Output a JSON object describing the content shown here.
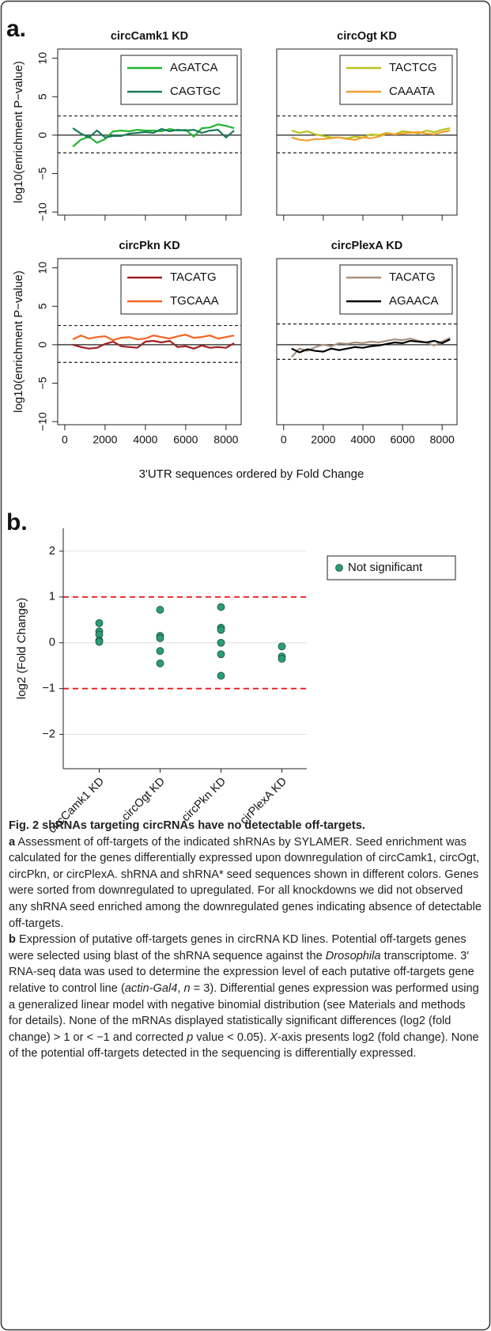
{
  "panel_labels": [
    "a.",
    "b."
  ],
  "shared_xlabel": "3'UTR sequences ordered by Fold Change",
  "chart_data": [
    {
      "type": "line",
      "title": "circCamk1 KD",
      "ylabel": "log10(enrichment P−value)",
      "x": [
        400,
        800,
        1200,
        1600,
        2000,
        2400,
        2800,
        3200,
        3600,
        4000,
        4400,
        4800,
        5200,
        5600,
        6000,
        6400,
        6800,
        7200,
        7600,
        8000,
        8400
      ],
      "series": [
        {
          "name": "AGATCA",
          "color": "#22b530",
          "values": [
            -1.5,
            -0.6,
            -0.2,
            -1,
            -0.5,
            0.5,
            0.6,
            0.5,
            0.7,
            0.6,
            0.6,
            0.5,
            0.8,
            0.6,
            0.7,
            -0.2,
            0.9,
            1.0,
            1.4,
            1.2,
            0.9
          ]
        },
        {
          "name": "CAGTGC",
          "color": "#1a7a5a",
          "values": [
            0.9,
            0.2,
            -0.3,
            0.6,
            -0.3,
            -0.1,
            -0.1,
            0.2,
            0.3,
            0.4,
            0.3,
            0.8,
            0.5,
            0.7,
            0.6,
            0.7,
            0.3,
            0.6,
            0.7,
            -0.3,
            0.6
          ]
        }
      ],
      "xlim": [
        -350,
        8750
      ],
      "ylim": [
        -10.4,
        11.2
      ],
      "xticks": [
        0,
        2000,
        4000,
        6000,
        8000
      ],
      "show_xtick_labels": false,
      "yticks": [
        {
          "value": -10,
          "label": "−10"
        },
        {
          "value": -5,
          "label": "−5"
        },
        0,
        5,
        10
      ],
      "hlines": [
        {
          "value": 0,
          "style": "solid"
        },
        {
          "value": 2.5,
          "style": "dashed"
        },
        {
          "value": -2.3,
          "style": "dashed"
        }
      ]
    },
    {
      "type": "line",
      "title": "circOgt KD",
      "x": [
        400,
        800,
        1200,
        1600,
        2000,
        2400,
        2800,
        3200,
        3600,
        4000,
        4400,
        4800,
        5200,
        5600,
        6000,
        6400,
        6800,
        7200,
        7600,
        8000,
        8400
      ],
      "series": [
        {
          "name": "TACTCG",
          "color": "#b8c21a",
          "values": [
            0.6,
            0.3,
            0.5,
            0.1,
            -0.1,
            -0.3,
            -0.3,
            -0.4,
            -0.2,
            -0.3,
            0.1,
            0.0,
            0.3,
            0.1,
            0.5,
            0.4,
            0.2,
            0.6,
            0.4,
            0.7,
            0.9
          ]
        },
        {
          "name": "CAAATA",
          "color": "#f0a030",
          "values": [
            -0.3,
            -0.6,
            -0.7,
            -0.5,
            -0.5,
            -0.4,
            -0.3,
            -0.5,
            -0.6,
            -0.3,
            -0.4,
            -0.2,
            0.2,
            0.1,
            0.2,
            0.3,
            0.4,
            0.2,
            0.1,
            0.4,
            0.6
          ]
        }
      ],
      "xlim": [
        -350,
        8750
      ],
      "ylim": [
        -10.4,
        11.2
      ],
      "xticks": [
        0,
        2000,
        4000,
        6000,
        8000
      ],
      "show_xtick_labels": false,
      "hlines": [
        {
          "value": 0,
          "style": "solid"
        },
        {
          "value": 2.5,
          "style": "dashed"
        },
        {
          "value": -2.3,
          "style": "dashed"
        }
      ]
    },
    {
      "type": "line",
      "title": "circPkn KD",
      "ylabel": "log10(enrichment P−value)",
      "x": [
        400,
        800,
        1200,
        1600,
        2000,
        2400,
        2800,
        3200,
        3600,
        4000,
        4400,
        4800,
        5200,
        5600,
        6000,
        6400,
        6800,
        7200,
        7600,
        8000,
        8400
      ],
      "series": [
        {
          "name": "TACATG",
          "color": "#a01f1f",
          "values": [
            0,
            -0.3,
            -0.5,
            -0.4,
            0.1,
            0.4,
            -0.2,
            -0.3,
            -0.4,
            0.4,
            0.5,
            0.3,
            0.5,
            -0.3,
            -0.2,
            -0.5,
            -0.1,
            -0.4,
            -0.3,
            -0.4,
            0.2
          ]
        },
        {
          "name": "TGCAAA",
          "color": "#f26522",
          "values": [
            0.7,
            1.2,
            0.8,
            1.0,
            1.1,
            0.6,
            0.9,
            1.0,
            0.7,
            0.8,
            1.2,
            1.0,
            0.8,
            1.1,
            1.3,
            0.9,
            1.0,
            1.2,
            0.8,
            1.0,
            1.2
          ]
        }
      ],
      "xlim": [
        -350,
        8750
      ],
      "ylim": [
        -10.4,
        11.2
      ],
      "xticks": [
        0,
        2000,
        4000,
        6000,
        8000
      ],
      "show_xtick_labels": true,
      "yticks": [
        {
          "value": -10,
          "label": "−10"
        },
        {
          "value": -5,
          "label": "−5"
        },
        0,
        5,
        10
      ],
      "hlines": [
        {
          "value": 0,
          "style": "solid"
        },
        {
          "value": 2.5,
          "style": "dashed"
        },
        {
          "value": -2.3,
          "style": "dashed"
        }
      ]
    },
    {
      "type": "line",
      "title": "circPlexA KD",
      "x": [
        400,
        800,
        1200,
        1600,
        2000,
        2400,
        2800,
        3200,
        3600,
        4000,
        4400,
        4800,
        5200,
        5600,
        6000,
        6400,
        6800,
        7200,
        7600,
        8000,
        8400
      ],
      "series": [
        {
          "name": "TACATG",
          "color": "#a89080",
          "values": [
            -1.6,
            -0.5,
            -0.8,
            -0.3,
            0,
            -0.2,
            0.2,
            0.1,
            0.3,
            0.2,
            0.4,
            0.3,
            0.5,
            0.7,
            0.6,
            0.8,
            0.5,
            0.3,
            -0.1,
            0.4,
            0.9
          ]
        },
        {
          "name": "AGAACA",
          "color": "#000000",
          "values": [
            -0.5,
            -1.0,
            -0.6,
            -0.8,
            -0.9,
            -0.5,
            -0.7,
            -0.5,
            -0.3,
            -0.4,
            -0.2,
            -0.1,
            0.1,
            0.3,
            0.2,
            0.5,
            0.4,
            0.3,
            0.5,
            0.2,
            0.7
          ]
        }
      ],
      "xlim": [
        -350,
        8750
      ],
      "ylim": [
        -10.4,
        11.2
      ],
      "xticks": [
        0,
        2000,
        4000,
        6000,
        8000
      ],
      "show_xtick_labels": true,
      "hlines": [
        {
          "value": 0,
          "style": "solid"
        },
        {
          "value": 2.7,
          "style": "dashed"
        },
        {
          "value": -1.9,
          "style": "dashed"
        }
      ]
    },
    {
      "type": "dot",
      "ylabel": "log2 (Fold Change)",
      "categories": [
        "circCamk1 KD",
        "circOgt KD",
        "circPkn KD",
        "cirPlexA KD"
      ],
      "series": [
        {
          "name": "Not significant",
          "color": "#2a9d78",
          "values": [
            [
              0.43,
              0.25,
              0.18,
              0.05,
              0.02
            ],
            [
              0.72,
              0.15,
              0.1,
              -0.18,
              -0.45
            ],
            [
              0.78,
              0.33,
              0.28,
              0.0,
              -0.25,
              -0.72
            ],
            [
              -0.08,
              -0.3,
              -0.35
            ]
          ]
        }
      ],
      "ylim": [
        -2.75,
        2.5
      ],
      "yticks": [
        {
          "value": -2,
          "label": "−2"
        },
        {
          "value": -1,
          "label": "−1"
        },
        0,
        1,
        2
      ],
      "grid": true,
      "legend": "right",
      "hlines": [
        {
          "value": 1,
          "style": "dashed",
          "color": "#e31a1c"
        },
        {
          "value": -1,
          "style": "dashed",
          "color": "#e31a1c"
        }
      ]
    }
  ],
  "caption": {
    "paragraphs": [
      [
        {
          "text": "Fig. 2 shRNAs targeting circRNAs have no detectable off-targets.",
          "style": "bold"
        }
      ],
      [
        {
          "text": "a",
          "style": "bold"
        },
        {
          "text": " Assessment of off-targets of the indicated shRNAs by SYLAMER. Seed enrichment was calculated for the genes differentially expressed upon downregulation of circCamk1, circOgt, circPkn, or circPlexA. shRNA and shRNA* seed sequences shown in different colors. Genes were sorted from downregulated to upregulated. For all knockdowns we did not observed any shRNA seed enriched among the downregulated genes indicating absence of detectable off-targets.",
          "style": "normal"
        }
      ],
      [
        {
          "text": "b",
          "style": "bold"
        },
        {
          "text": " Expression of putative off-targets genes in circRNA KD lines. Potential off-targets genes were selected using blast of the shRNA sequence against the ",
          "style": "normal"
        },
        {
          "text": "Drosophila",
          "style": "italic"
        },
        {
          "text": " transcriptome. 3′ RNA-seq data was used to determine the expression level of each putative off-targets gene relative to control line (",
          "style": "normal"
        },
        {
          "text": "actin-Gal4",
          "style": "italic"
        },
        {
          "text": ", ",
          "style": "normal"
        },
        {
          "text": "n",
          "style": "italic"
        },
        {
          "text": " = 3). Differential genes expression was performed using a generalized linear model with negative binomial distribution (see Materials and methods for details). None of the mRNAs displayed statistically significant differences (log2 (fold change) > 1 or < −1 and corrected ",
          "style": "normal"
        },
        {
          "text": "p",
          "style": "italic"
        },
        {
          "text": " value < 0.05). ",
          "style": "normal"
        },
        {
          "text": "X",
          "style": "italic"
        },
        {
          "text": "-axis presents log2 (fold change). None of the potential off-targets detected in the sequencing is differentially expressed.",
          "style": "normal"
        }
      ]
    ]
  }
}
